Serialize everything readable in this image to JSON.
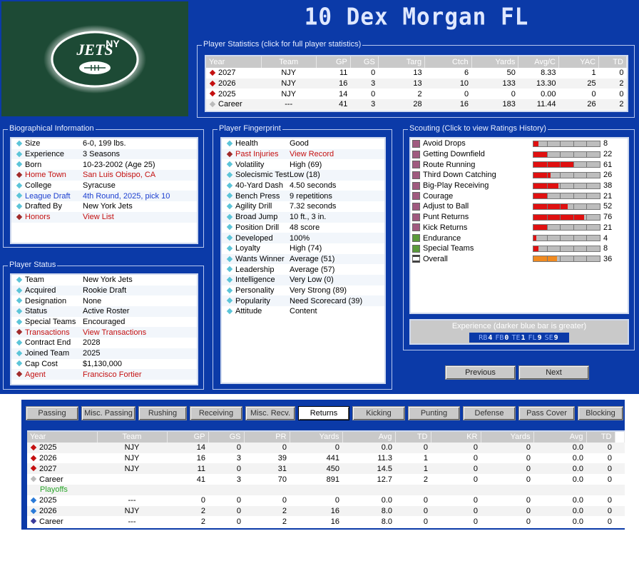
{
  "header": {
    "title": "10  Dex Morgan  FL",
    "team_logo": "JETS"
  },
  "player_stats": {
    "title": "Player Statistics (click for full player statistics)",
    "columns": [
      "Year",
      "Team",
      "GP",
      "GS",
      "Targ",
      "Ctch",
      "Yards",
      "Avg/C",
      "YAC",
      "TD"
    ],
    "rows": [
      {
        "m": "red",
        "c": [
          "2027",
          "NJY",
          "11",
          "0",
          "13",
          "6",
          "50",
          "8.33",
          "1",
          "0"
        ]
      },
      {
        "m": "red",
        "c": [
          "2026",
          "NJY",
          "16",
          "3",
          "13",
          "10",
          "133",
          "13.30",
          "25",
          "2"
        ]
      },
      {
        "m": "red",
        "c": [
          "2025",
          "NJY",
          "14",
          "0",
          "2",
          "0",
          "0",
          "0.00",
          "0",
          "0"
        ]
      },
      {
        "m": "grey",
        "c": [
          "Career",
          "---",
          "41",
          "3",
          "28",
          "16",
          "183",
          "11.44",
          "26",
          "2"
        ]
      }
    ]
  },
  "bio": {
    "title": "Biographical Information",
    "items": [
      {
        "k": "Size",
        "v": "6-0, 199 lbs.",
        "style": ""
      },
      {
        "k": "Experience",
        "v": "3 Seasons",
        "style": ""
      },
      {
        "k": "Born",
        "v": "10-23-2002 (Age 25)",
        "style": ""
      },
      {
        "k": "Home Town",
        "v": "San Luis Obispo, CA",
        "style": "red"
      },
      {
        "k": "College",
        "v": "Syracuse",
        "style": ""
      },
      {
        "k": "League Draft",
        "v": "4th Round, 2025, pick 10",
        "style": "blue"
      },
      {
        "k": "Drafted By",
        "v": "New York Jets",
        "style": ""
      },
      {
        "k": "Honors",
        "v": "View List",
        "style": "red"
      }
    ]
  },
  "status": {
    "title": "Player Status",
    "items": [
      {
        "k": "Team",
        "v": "New York Jets",
        "style": ""
      },
      {
        "k": "Acquired",
        "v": "Rookie Draft",
        "style": ""
      },
      {
        "k": "Designation",
        "v": "None",
        "style": ""
      },
      {
        "k": "Status",
        "v": "Active Roster",
        "style": ""
      },
      {
        "k": "Special Teams",
        "v": "Encouraged",
        "style": ""
      },
      {
        "k": "Transactions",
        "v": "View Transactions",
        "style": "red"
      },
      {
        "k": "Contract End",
        "v": "2028",
        "style": ""
      },
      {
        "k": "Joined Team",
        "v": "2025",
        "style": ""
      },
      {
        "k": "Cap Cost",
        "v": "$1,130,000",
        "style": ""
      },
      {
        "k": "Agent",
        "v": "Francisco Fortier",
        "style": "red"
      }
    ]
  },
  "fingerprint": {
    "title": "Player Fingerprint",
    "items": [
      {
        "k": "Health",
        "v": "Good",
        "style": ""
      },
      {
        "k": "Past Injuries",
        "v": "View Record",
        "style": "red"
      },
      {
        "k": "Volatility",
        "v": "High (69)",
        "style": ""
      },
      {
        "k": "Solecismic Test",
        "v": "Low (18)",
        "style": ""
      },
      {
        "k": "40-Yard Dash",
        "v": "4.50 seconds",
        "style": ""
      },
      {
        "k": "Bench Press",
        "v": "9 repetitions",
        "style": ""
      },
      {
        "k": "Agility Drill",
        "v": "7.32 seconds",
        "style": ""
      },
      {
        "k": "Broad Jump",
        "v": "10 ft., 3 in.",
        "style": ""
      },
      {
        "k": "Position Drill",
        "v": "48 score",
        "style": ""
      },
      {
        "k": "Developed",
        "v": "100%",
        "style": ""
      },
      {
        "k": "Loyalty",
        "v": "High (74)",
        "style": ""
      },
      {
        "k": "Wants Winner",
        "v": "Average (51)",
        "style": ""
      },
      {
        "k": "Leadership",
        "v": "Average (57)",
        "style": ""
      },
      {
        "k": "Intelligence",
        "v": "Very Low (0)",
        "style": ""
      },
      {
        "k": "Personality",
        "v": "Very Strong (89)",
        "style": ""
      },
      {
        "k": "Popularity",
        "v": "Need Scorecard (39)",
        "style": ""
      },
      {
        "k": "Attitude",
        "v": "Content",
        "style": ""
      }
    ]
  },
  "scouting": {
    "title": "Scouting (Click to view Ratings History)",
    "items": [
      {
        "label": "Avoid Drops",
        "value": 8,
        "current": 8,
        "sq": "#a05a80"
      },
      {
        "label": "Getting Downfield",
        "value": 22,
        "current": 22,
        "sq": "#a05a80"
      },
      {
        "label": "Route Running",
        "value": 61,
        "current": 61,
        "sq": "#a05a80"
      },
      {
        "label": "Third Down Catching",
        "value": 26,
        "current": 26,
        "sq": "#a05a80"
      },
      {
        "label": "Big-Play Receiving",
        "value": 38,
        "current": 38,
        "sq": "#a05a80"
      },
      {
        "label": "Courage",
        "value": 21,
        "current": 21,
        "sq": "#a05a80"
      },
      {
        "label": "Adjust to Ball",
        "value": 52,
        "current": 52,
        "sq": "#a05a80"
      },
      {
        "label": "Punt Returns",
        "value": 76,
        "current": 76,
        "sq": "#a05a80"
      },
      {
        "label": "Kick Returns",
        "value": 21,
        "current": 21,
        "sq": "#a05a80"
      },
      {
        "label": "Endurance",
        "value": 4,
        "current": 4,
        "sq": "#5a9a3a"
      },
      {
        "label": "Special Teams",
        "value": 8,
        "current": 8,
        "sq": "#5a9a3a"
      },
      {
        "label": "Overall",
        "value": 36,
        "current": 36,
        "sq": "#444"
      }
    ],
    "experience": {
      "title": "Experience (darker blue bar is greater)",
      "positions": [
        {
          "pos": "RB",
          "n": "4"
        },
        {
          "pos": "FB",
          "n": "0"
        },
        {
          "pos": "TE",
          "n": "1"
        },
        {
          "pos": "FL",
          "n": "9"
        },
        {
          "pos": "SE",
          "n": "9"
        }
      ]
    }
  },
  "nav": {
    "previous": "Previous",
    "next": "Next"
  },
  "tabs": [
    "Passing",
    "Misc. Passing",
    "Rushing",
    "Receiving",
    "Misc. Recv.",
    "Returns",
    "Kicking",
    "Punting",
    "Defense",
    "Pass Cover",
    "Blocking"
  ],
  "selected_tab": "Returns",
  "returns": {
    "columns": [
      "Year",
      "Team",
      "GP",
      "GS",
      "PR",
      "Yards",
      "Avg",
      "TD",
      "KR",
      "Yards",
      "Avg",
      "TD"
    ],
    "rows": [
      {
        "m": "red",
        "c": [
          "2025",
          "NJY",
          "14",
          "0",
          "0",
          "0",
          "0.0",
          "0",
          "0",
          "0",
          "0.0",
          "0"
        ]
      },
      {
        "m": "red",
        "c": [
          "2026",
          "NJY",
          "16",
          "3",
          "39",
          "441",
          "11.3",
          "1",
          "0",
          "0",
          "0.0",
          "0"
        ]
      },
      {
        "m": "red",
        "c": [
          "2027",
          "NJY",
          "11",
          "0",
          "31",
          "450",
          "14.5",
          "1",
          "0",
          "0",
          "0.0",
          "0"
        ]
      },
      {
        "m": "grey",
        "c": [
          "Career",
          "",
          "41",
          "3",
          "70",
          "891",
          "12.7",
          "2",
          "0",
          "0",
          "0.0",
          "0"
        ]
      },
      {
        "m": "none",
        "label": "Playoffs"
      },
      {
        "m": "blue",
        "c": [
          "2025",
          "---",
          "0",
          "0",
          "0",
          "0",
          "0.0",
          "0",
          "0",
          "0",
          "0.0",
          "0"
        ]
      },
      {
        "m": "blue",
        "c": [
          "2026",
          "NJY",
          "2",
          "0",
          "2",
          "16",
          "8.0",
          "0",
          "0",
          "0",
          "0.0",
          "0"
        ]
      },
      {
        "m": "navy",
        "c": [
          "Career",
          "---",
          "2",
          "0",
          "2",
          "16",
          "8.0",
          "0",
          "0",
          "0",
          "0.0",
          "0"
        ]
      }
    ]
  },
  "colors": {
    "background": "#0b3aa8",
    "header_text": "#dfe8ff",
    "link_red": "#c41010",
    "link_blue": "#1c3fd0",
    "bar_red": "#e01010",
    "bar_orange": "#f08a20"
  }
}
